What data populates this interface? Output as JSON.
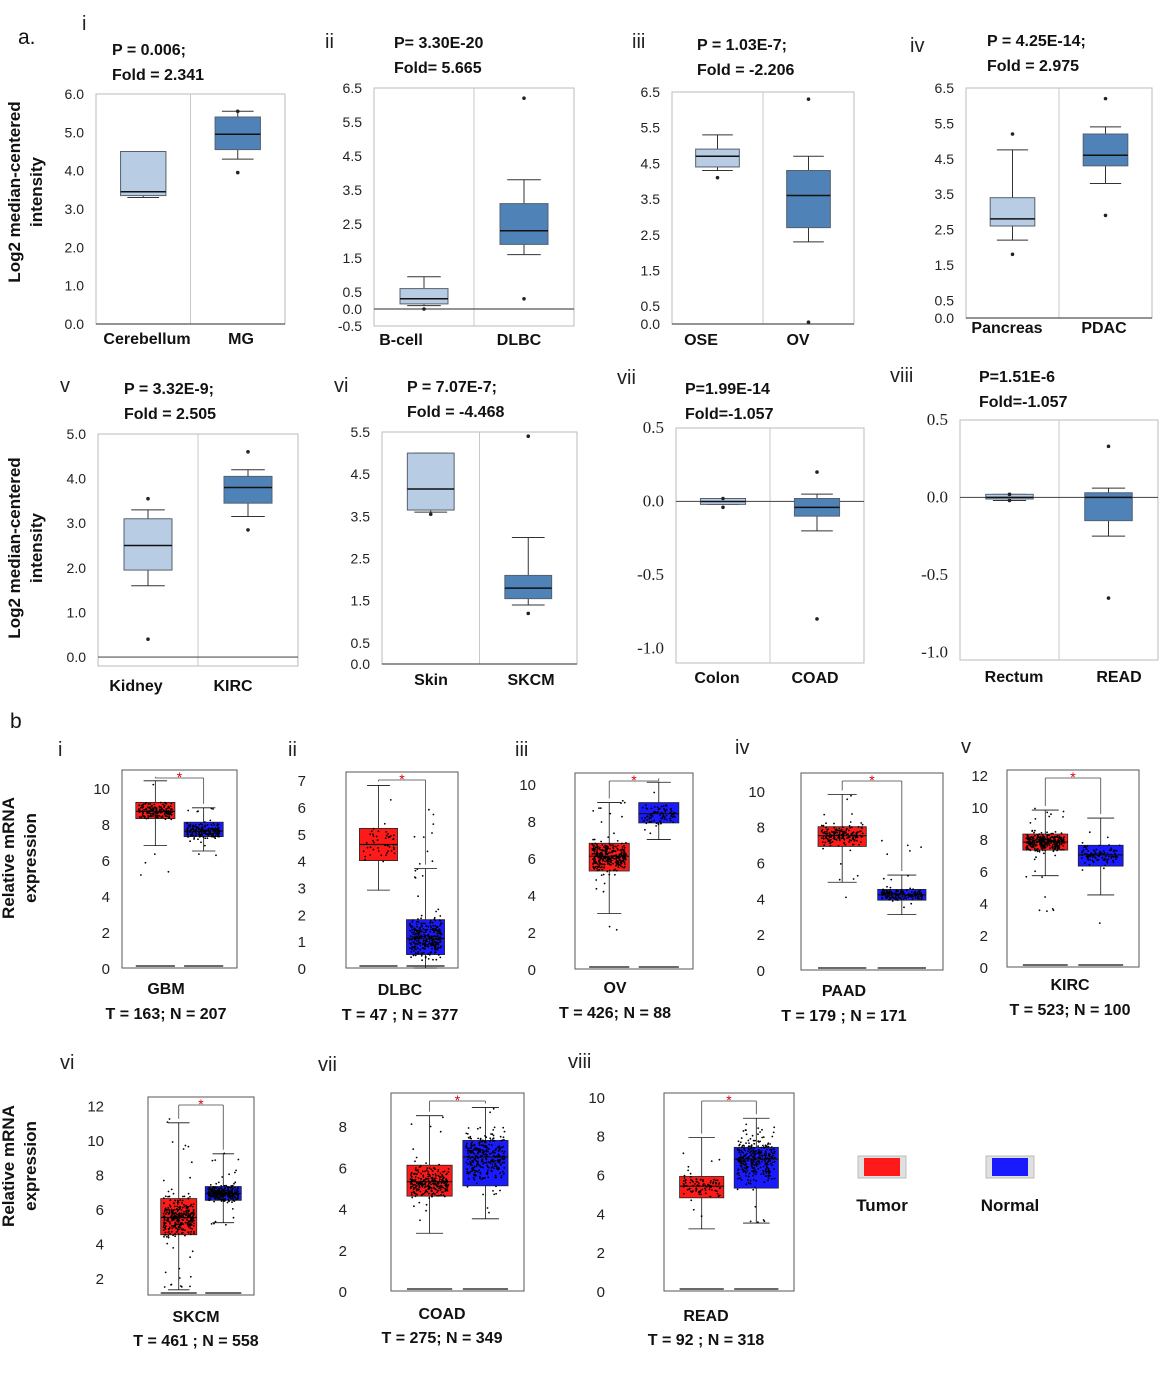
{
  "panel_labels": [
    "a.",
    "b"
  ],
  "left_axis_labels": {
    "a": [
      "Log2 median-centered",
      "intensity"
    ],
    "b": [
      "Relative mRNA",
      "expression"
    ]
  },
  "legend": [
    {
      "label": "Tumor",
      "color": "#ff1a1a"
    },
    {
      "label": "Normal",
      "color": "#1a1aff"
    }
  ],
  "colors": {
    "normal_box_a": "#b8cde3",
    "tumor_box_a": "#4f82b6",
    "tumor_box_b": "#ff1a1a",
    "normal_box_b": "#1a1aff",
    "significance_star": "#e00000"
  },
  "chart_data": [
    {
      "type": "box",
      "panel": "a",
      "roman": "i",
      "stat1": "P = 0.006;",
      "stat2": "Fold = 2.341",
      "ticks": [
        "6.0",
        "5.0",
        "4.0",
        "3.0",
        "2.0",
        "1.0",
        "0.0"
      ],
      "ylim": [
        0.0,
        6.0
      ],
      "categories": [
        "Cerebellum",
        "MG"
      ],
      "boxes": [
        {
          "min": 3.3,
          "q1": 3.35,
          "median": 3.45,
          "q3": 4.5,
          "max": 4.5,
          "outliers": []
        },
        {
          "min": 4.3,
          "q1": 4.55,
          "median": 4.95,
          "q3": 5.4,
          "max": 5.55,
          "outliers": [
            3.95,
            5.55
          ]
        }
      ]
    },
    {
      "type": "box",
      "panel": "a",
      "roman": "ii",
      "stat1": "P= 3.30E-20",
      "stat2": "Fold= 5.665",
      "ticks": [
        "6.5",
        "5.5",
        "4.5",
        "3.5",
        "2.5",
        "1.5",
        "0.5",
        "0.0",
        "-0.5"
      ],
      "ylim": [
        -0.5,
        6.5
      ],
      "categories": [
        "B-cell",
        "DLBC"
      ],
      "boxes": [
        {
          "min": 0.1,
          "q1": 0.15,
          "median": 0.3,
          "q3": 0.6,
          "max": 0.95,
          "outliers": [
            0.0
          ]
        },
        {
          "min": 1.6,
          "q1": 1.9,
          "median": 2.3,
          "q3": 3.1,
          "max": 3.8,
          "outliers": [
            6.2,
            0.3
          ]
        }
      ]
    },
    {
      "type": "box",
      "panel": "a",
      "roman": "iii",
      "stat1": "P = 1.03E-7;",
      "stat2": "Fold = -2.206",
      "ticks": [
        "6.5",
        "5.5",
        "4.5",
        "3.5",
        "2.5",
        "1.5",
        "0.5",
        "0.0"
      ],
      "ylim": [
        0.0,
        6.5
      ],
      "categories": [
        "OSE",
        "OV"
      ],
      "boxes": [
        {
          "min": 4.3,
          "q1": 4.4,
          "median": 4.7,
          "q3": 4.9,
          "max": 5.3,
          "outliers": [
            4.1
          ]
        },
        {
          "min": 2.3,
          "q1": 2.7,
          "median": 3.6,
          "q3": 4.3,
          "max": 4.7,
          "outliers": [
            6.3,
            0.05
          ]
        }
      ]
    },
    {
      "type": "box",
      "panel": "a",
      "roman": "iv",
      "stat1": "P = 4.25E-14;",
      "stat2": "Fold = 2.975",
      "ticks": [
        "6.5",
        "5.5",
        "4.5",
        "3.5",
        "2.5",
        "1.5",
        "0.5",
        "0.0"
      ],
      "ylim": [
        0.0,
        6.5
      ],
      "categories": [
        "Pancreas",
        "PDAC"
      ],
      "boxes": [
        {
          "min": 2.2,
          "q1": 2.6,
          "median": 2.8,
          "q3": 3.4,
          "max": 4.75,
          "outliers": [
            1.8,
            5.2
          ]
        },
        {
          "min": 3.8,
          "q1": 4.3,
          "median": 4.6,
          "q3": 5.2,
          "max": 5.4,
          "outliers": [
            6.2,
            2.9
          ]
        }
      ]
    },
    {
      "type": "box",
      "panel": "a",
      "roman": "v",
      "stat1": "P = 3.32E-9;",
      "stat2": "Fold = 2.505",
      "ticks": [
        "5.0",
        "4.0",
        "3.0",
        "2.0",
        "1.0",
        "0.0"
      ],
      "ylim": [
        -0.2,
        5.0
      ],
      "categories": [
        "Kidney",
        "KIRC"
      ],
      "boxes": [
        {
          "min": 1.6,
          "q1": 1.95,
          "median": 2.5,
          "q3": 3.1,
          "max": 3.3,
          "outliers": [
            3.55,
            0.4
          ]
        },
        {
          "min": 3.15,
          "q1": 3.45,
          "median": 3.8,
          "q3": 4.05,
          "max": 4.2,
          "outliers": [
            4.6,
            2.85
          ]
        }
      ]
    },
    {
      "type": "box",
      "panel": "a",
      "roman": "vi",
      "stat1": "P = 7.07E-7;",
      "stat2": "Fold = -4.468",
      "ticks": [
        "5.5",
        "4.5",
        "3.5",
        "2.5",
        "1.5",
        "0.5",
        "0.0"
      ],
      "ylim": [
        0.0,
        5.5
      ],
      "categories": [
        "Skin",
        "SKCM"
      ],
      "boxes": [
        {
          "min": 3.6,
          "q1": 3.65,
          "median": 4.15,
          "q3": 5.0,
          "max": 5.0,
          "outliers": [
            3.55
          ]
        },
        {
          "min": 1.4,
          "q1": 1.55,
          "median": 1.8,
          "q3": 2.1,
          "max": 3.0,
          "outliers": [
            5.4,
            1.2
          ]
        }
      ]
    },
    {
      "type": "box",
      "panel": "a",
      "roman": "vii",
      "stat1": "P=1.99E-14",
      "stat2": "Fold=-1.057",
      "ticks": [
        "0.5",
        "0.0",
        "-0.5",
        "-1.0"
      ],
      "ylim": [
        -1.1,
        0.5
      ],
      "serif": true,
      "categories": [
        "Colon",
        "COAD"
      ],
      "boxes": [
        {
          "min": -0.02,
          "q1": -0.02,
          "median": 0.0,
          "q3": 0.02,
          "max": 0.02,
          "outliers": [
            0.02,
            -0.04
          ]
        },
        {
          "min": -0.2,
          "q1": -0.1,
          "median": -0.04,
          "q3": 0.02,
          "max": 0.05,
          "outliers": [
            0.2,
            -0.8
          ]
        }
      ]
    },
    {
      "type": "box",
      "panel": "a",
      "roman": "viii",
      "stat1": "P=1.51E-6",
      "stat2": "Fold=-1.057",
      "ticks": [
        "0.5",
        "0.0",
        "-0.5",
        "-1.0"
      ],
      "ylim": [
        -1.05,
        0.5
      ],
      "serif": true,
      "categories": [
        "Rectum",
        "READ"
      ],
      "boxes": [
        {
          "min": -0.02,
          "q1": -0.01,
          "median": 0.0,
          "q3": 0.02,
          "max": 0.02,
          "outliers": [
            0.02,
            -0.02
          ]
        },
        {
          "min": -0.25,
          "q1": -0.15,
          "median": 0.0,
          "q3": 0.03,
          "max": 0.06,
          "outliers": [
            0.33,
            -0.65
          ]
        }
      ]
    },
    {
      "type": "box-jitter",
      "panel": "b",
      "roman": "i",
      "caption1": "GBM",
      "caption2": "T = 163; N = 207",
      "ticks": [
        0,
        2,
        4,
        6,
        8,
        10
      ],
      "ylim": [
        0,
        11
      ],
      "n": [
        163,
        207
      ],
      "boxes": [
        {
          "min": 6.8,
          "q1": 8.3,
          "median": 8.7,
          "q3": 9.2,
          "max": 10.4,
          "spread": [
            5.1,
            10.6
          ]
        },
        {
          "min": 6.5,
          "q1": 7.3,
          "median": 7.6,
          "q3": 8.1,
          "max": 8.9,
          "spread": [
            6.2,
            8.9
          ]
        }
      ]
    },
    {
      "type": "box-jitter",
      "panel": "b",
      "roman": "ii",
      "caption1": "DLBC",
      "caption2": "T = 47 ; N = 377",
      "ticks": [
        0,
        1,
        2,
        3,
        4,
        5,
        6,
        7
      ],
      "ylim": [
        0,
        7.3
      ],
      "n": [
        47,
        377
      ],
      "boxes": [
        {
          "min": 2.9,
          "q1": 4.0,
          "median": 4.6,
          "q3": 5.2,
          "max": 6.8,
          "spread": [
            2.9,
            6.8
          ]
        },
        {
          "min": 0.0,
          "q1": 0.5,
          "median": 1.1,
          "q3": 1.8,
          "max": 3.7,
          "spread": [
            0.0,
            6.3
          ]
        }
      ]
    },
    {
      "type": "box-jitter",
      "panel": "b",
      "roman": "iii",
      "caption1": "OV",
      "caption2": "T = 426; N = 88",
      "ticks": [
        0,
        2,
        4,
        6,
        8,
        10
      ],
      "ylim": [
        0,
        10.6
      ],
      "n": [
        426,
        88
      ],
      "boxes": [
        {
          "min": 3.0,
          "q1": 5.3,
          "median": 6.1,
          "q3": 6.8,
          "max": 9.0,
          "spread": [
            1.8,
            9.2
          ]
        },
        {
          "min": 7.0,
          "q1": 7.9,
          "median": 8.4,
          "q3": 9.0,
          "max": 10.1,
          "spread": [
            7.0,
            10.1
          ]
        }
      ]
    },
    {
      "type": "box-jitter",
      "panel": "b",
      "roman": "iv",
      "caption1": "PAAD",
      "caption2": "T = 179 ; N = 171",
      "ticks": [
        0,
        2,
        4,
        6,
        8,
        10
      ],
      "ylim": [
        0,
        11
      ],
      "n": [
        179,
        171
      ],
      "boxes": [
        {
          "min": 4.9,
          "q1": 6.9,
          "median": 7.5,
          "q3": 8.0,
          "max": 9.8,
          "spread": [
            3.6,
            9.8
          ]
        },
        {
          "min": 3.1,
          "q1": 3.9,
          "median": 4.2,
          "q3": 4.5,
          "max": 5.3,
          "spread": [
            2.9,
            8.2
          ]
        }
      ]
    },
    {
      "type": "box-jitter",
      "panel": "b",
      "roman": "v",
      "caption1": "KIRC",
      "caption2": "T = 523; N = 100",
      "ticks": [
        0,
        2,
        4,
        6,
        8,
        10,
        12
      ],
      "ylim": [
        0,
        12.3
      ],
      "n": [
        523,
        100
      ],
      "boxes": [
        {
          "min": 5.7,
          "q1": 7.3,
          "median": 7.8,
          "q3": 8.3,
          "max": 9.8,
          "spread": [
            3.3,
            10.3
          ]
        },
        {
          "min": 4.5,
          "q1": 6.3,
          "median": 7.0,
          "q3": 7.6,
          "max": 9.3,
          "spread": [
            1.4,
            9.3
          ]
        }
      ]
    },
    {
      "type": "box-jitter",
      "panel": "b",
      "roman": "vi",
      "caption1": "SKCM",
      "caption2": "T = 461 ; N = 558",
      "ticks": [
        2,
        4,
        6,
        8,
        10,
        12
      ],
      "ylim": [
        1,
        12.5
      ],
      "n": [
        461,
        558
      ],
      "boxes": [
        {
          "min": 1.3,
          "q1": 4.5,
          "median": 5.5,
          "q3": 6.6,
          "max": 11.0,
          "spread": [
            1.3,
            11.3
          ]
        },
        {
          "min": 5.2,
          "q1": 6.5,
          "median": 6.9,
          "q3": 7.3,
          "max": 9.2,
          "spread": [
            4.9,
            9.3
          ]
        }
      ]
    },
    {
      "type": "box-jitter",
      "panel": "b",
      "roman": "vii",
      "caption1": "COAD",
      "caption2": "T = 275; N = 349",
      "ticks": [
        0,
        2,
        4,
        6,
        8
      ],
      "ylim": [
        0,
        9.6
      ],
      "n": [
        275,
        349
      ],
      "boxes": [
        {
          "min": 2.8,
          "q1": 4.6,
          "median": 5.3,
          "q3": 6.1,
          "max": 8.5,
          "spread": [
            2.8,
            8.6
          ]
        },
        {
          "min": 3.5,
          "q1": 5.1,
          "median": 6.5,
          "q3": 7.3,
          "max": 8.9,
          "spread": [
            3.4,
            8.9
          ]
        }
      ]
    },
    {
      "type": "box-jitter",
      "panel": "b",
      "roman": "viii",
      "caption1": "READ",
      "caption2": "T = 92 ; N = 318",
      "ticks": [
        0,
        2,
        4,
        6,
        8,
        10
      ],
      "ylim": [
        0,
        10.2
      ],
      "n": [
        92,
        318
      ],
      "boxes": [
        {
          "min": 3.2,
          "q1": 4.8,
          "median": 5.4,
          "q3": 5.9,
          "max": 7.9,
          "spread": [
            3.1,
            8.0
          ]
        },
        {
          "min": 3.5,
          "q1": 5.3,
          "median": 6.8,
          "q3": 7.4,
          "max": 8.9,
          "spread": [
            3.4,
            8.9
          ]
        }
      ]
    }
  ]
}
